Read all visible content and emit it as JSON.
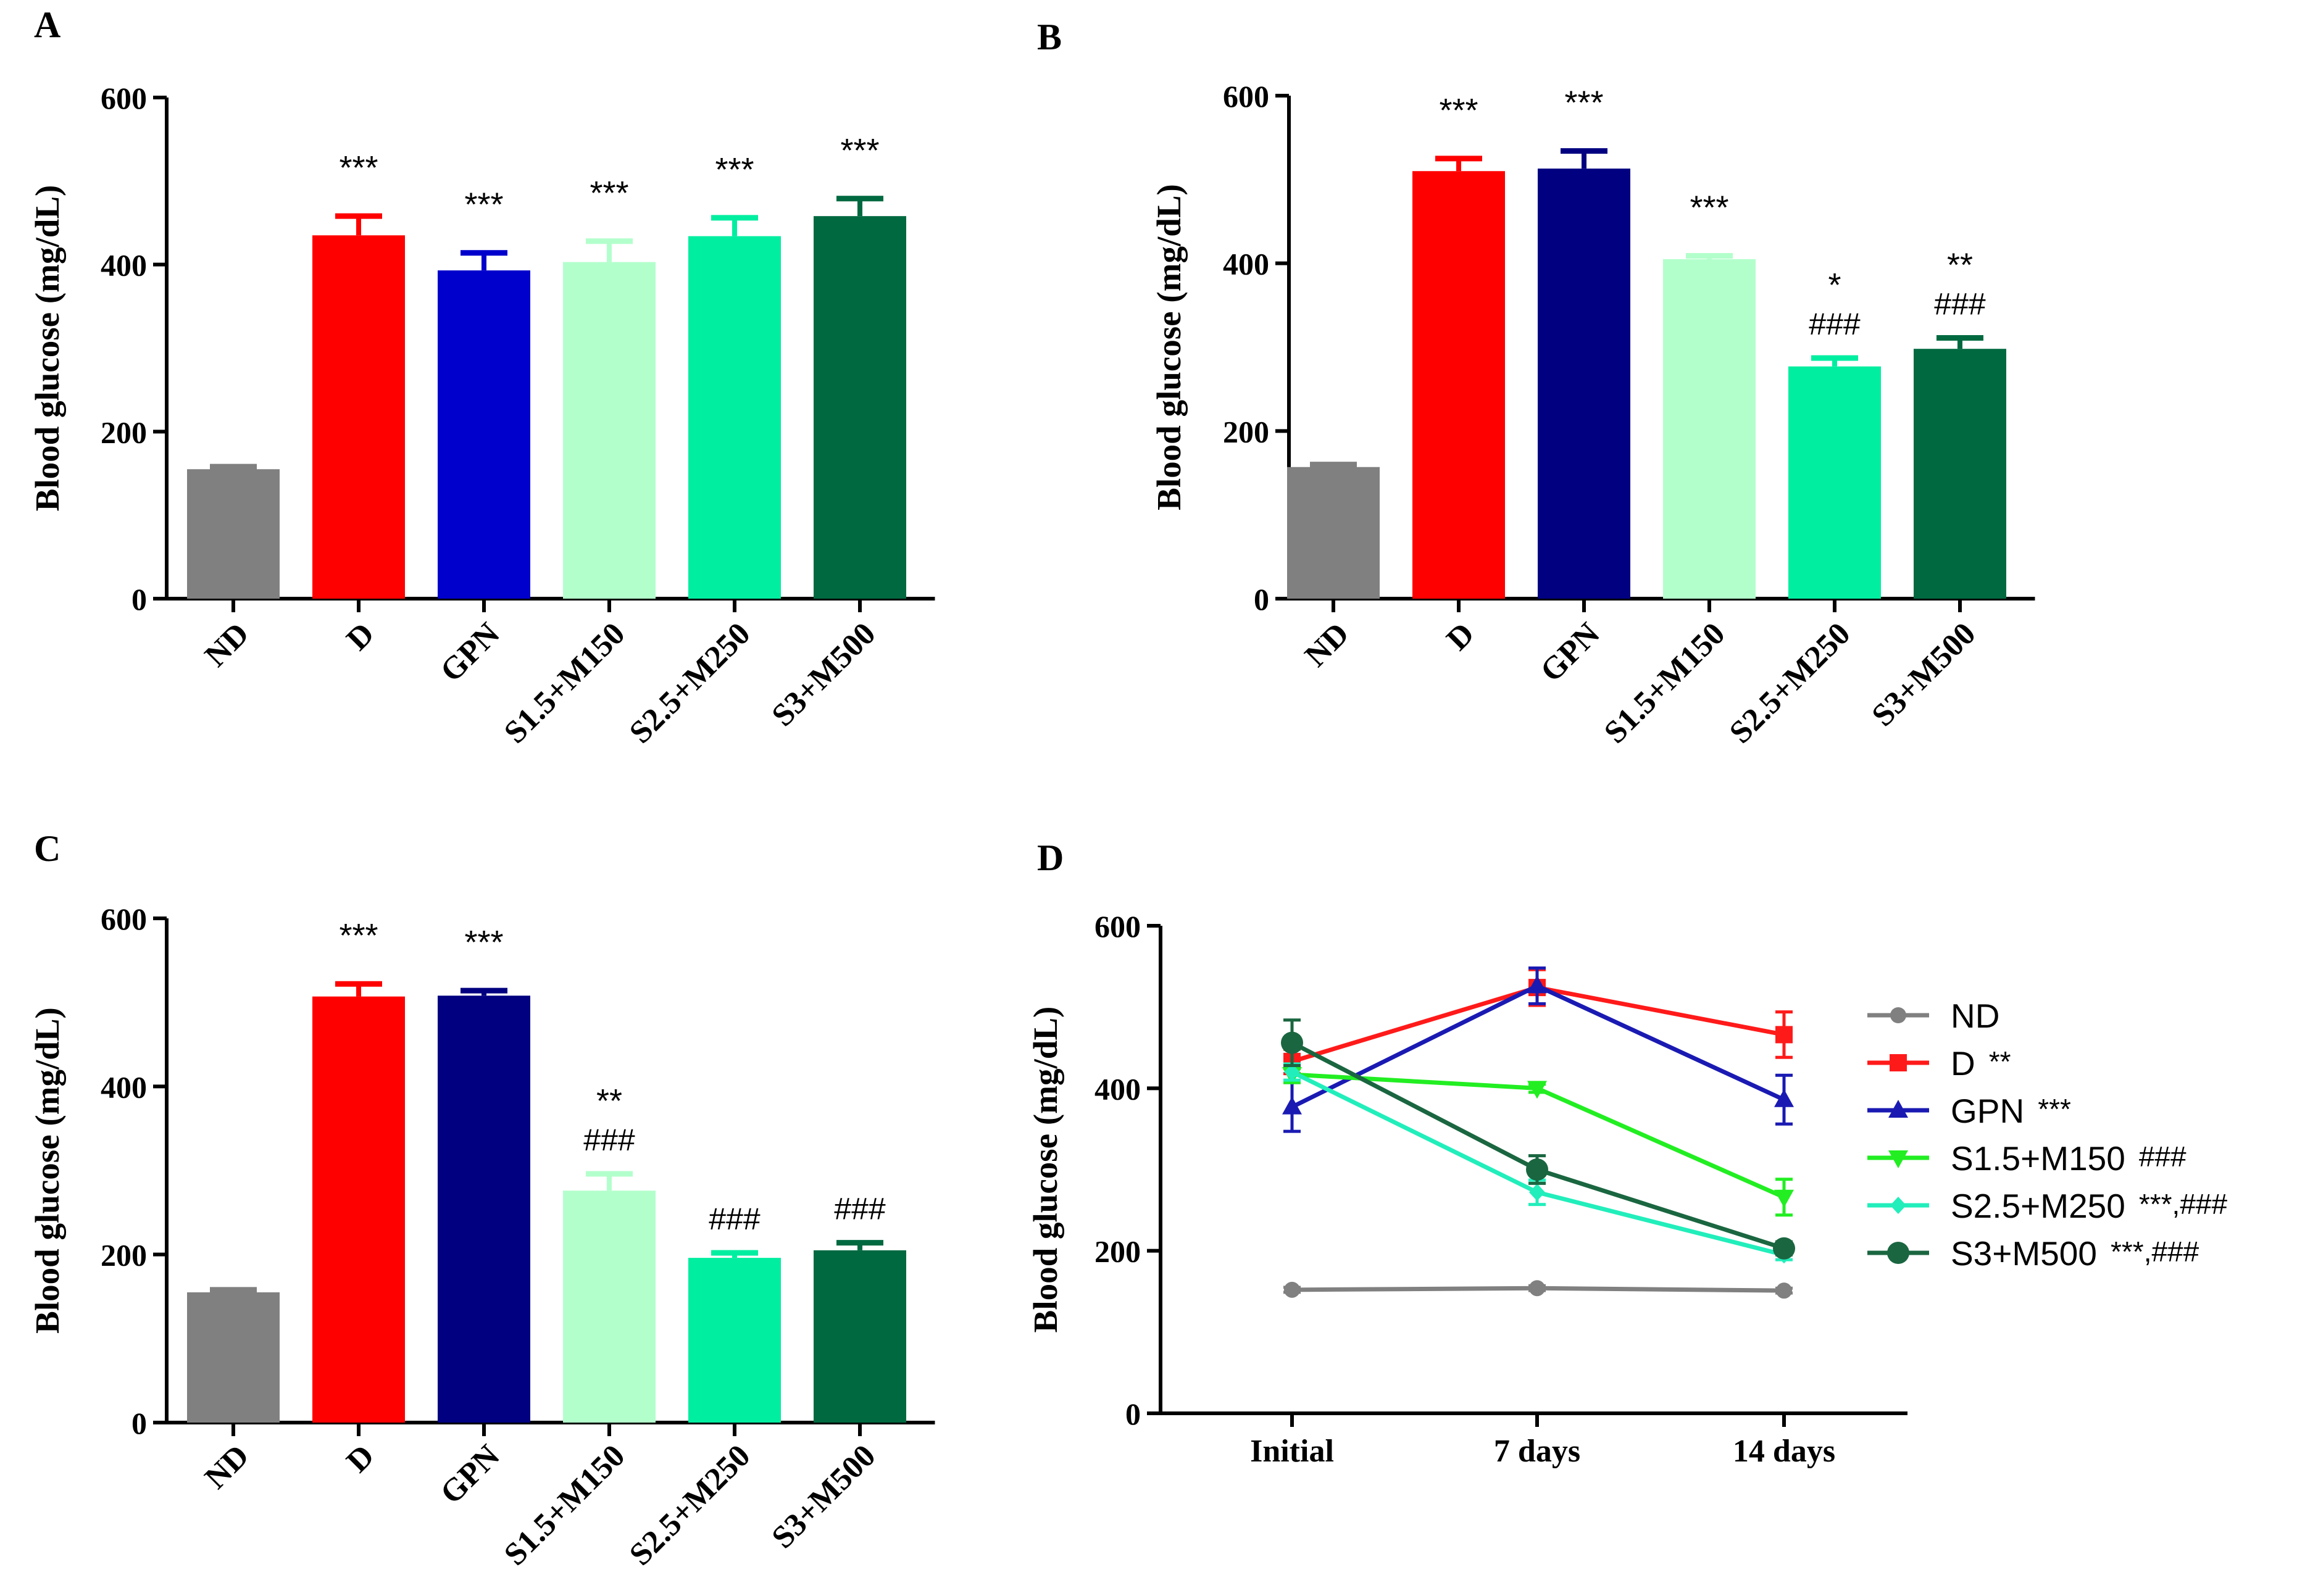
{
  "colors": {
    "ND": "#808080",
    "D": "#ff0000",
    "GPN_A": "#0000cc",
    "GPN": "#000080",
    "S15": "#b3ffcc",
    "S25": "#00eea0",
    "S3": "#006940",
    "D_line": "#ff1a1a",
    "GPN_line": "#1a1ab3",
    "S15_line": "#22ee22",
    "S25_line": "#22eebb",
    "S3_line": "#1a6640"
  },
  "chart_data": [
    {
      "panel": "A",
      "type": "bar",
      "ylabel": "Blood glucose (mg/dL)",
      "ylim": [
        0,
        600
      ],
      "yticks": [
        "0",
        "200",
        "400",
        "600"
      ],
      "categories": [
        "ND",
        "D",
        "GPN",
        "S1.5+M150",
        "S2.5+M250",
        "S3+M500"
      ],
      "values": [
        155,
        435,
        393,
        403,
        434,
        458
      ],
      "errors": [
        3,
        23,
        21,
        25,
        22,
        21
      ],
      "colorKeys": [
        "ND",
        "D",
        "GPN_A",
        "S15",
        "S25",
        "S3"
      ],
      "sig1": [
        "",
        "***",
        "***",
        "***",
        "***",
        "***"
      ],
      "sig2": [
        "",
        "",
        "",
        "",
        "",
        ""
      ]
    },
    {
      "panel": "B",
      "type": "bar",
      "ylabel": "Blood glucose (mg/dL)",
      "ylim": [
        0,
        600
      ],
      "yticks": [
        "0",
        "200",
        "400",
        "600"
      ],
      "categories": [
        "ND",
        "D",
        "GPN",
        "S1.5+M150",
        "S2.5+M250",
        "S3+M500"
      ],
      "values": [
        157,
        510,
        513,
        405,
        277,
        298
      ],
      "errors": [
        3,
        15,
        21,
        4,
        10,
        13
      ],
      "colorKeys": [
        "ND",
        "D",
        "GPN",
        "S15",
        "S25",
        "S3"
      ],
      "sig1": [
        "",
        "***",
        "***",
        "***",
        "*",
        "**"
      ],
      "sig2": [
        "",
        "",
        "",
        "",
        "###",
        "###"
      ]
    },
    {
      "panel": "C",
      "type": "bar",
      "ylabel": "Blood glucose (mg/dL)",
      "ylim": [
        0,
        600
      ],
      "yticks": [
        "0",
        "200",
        "400",
        "600"
      ],
      "categories": [
        "ND",
        "D",
        "GPN",
        "S1.5+M150",
        "S2.5+M250",
        "S3+M500"
      ],
      "values": [
        155,
        507,
        508,
        276,
        196,
        205
      ],
      "errors": [
        3,
        15,
        6,
        20,
        6,
        9
      ],
      "colorKeys": [
        "ND",
        "D",
        "GPN",
        "S15",
        "S25",
        "S3"
      ],
      "sig1": [
        "",
        "***",
        "***",
        "**",
        "",
        ""
      ],
      "sig2": [
        "",
        "",
        "",
        "###",
        "###",
        "###"
      ]
    },
    {
      "panel": "D",
      "type": "line",
      "ylabel": "Blood glucose (mg/dL)",
      "ylim": [
        0,
        600
      ],
      "yticks": [
        "0",
        "200",
        "400",
        "600"
      ],
      "x": [
        "Initial",
        "7 days",
        "14 days"
      ],
      "series": [
        {
          "name": "ND",
          "sig": "",
          "values": [
            152,
            154,
            151
          ],
          "errors": [
            3,
            3,
            3
          ],
          "marker": "circle",
          "colorKey": "ND"
        },
        {
          "name": "D",
          "sig": "**",
          "values": [
            433,
            524,
            466
          ],
          "errors": [
            15,
            22,
            28
          ],
          "marker": "square",
          "colorKey": "D_line"
        },
        {
          "name": "GPN",
          "sig": "***",
          "values": [
            377,
            526,
            386
          ],
          "errors": [
            30,
            22,
            30
          ],
          "marker": "triangle-up",
          "colorKey": "GPN_line"
        },
        {
          "name": "S1.5+M150",
          "sig": "###",
          "values": [
            417,
            400,
            266
          ],
          "errors": [
            10,
            5,
            22
          ],
          "marker": "triangle-down",
          "colorKey": "S15_line"
        },
        {
          "name": "S2.5+M250",
          "sig": "***,###",
          "values": [
            420,
            272,
            195
          ],
          "errors": [
            10,
            15,
            6
          ],
          "marker": "diamond",
          "colorKey": "S25_line"
        },
        {
          "name": "S3+M500",
          "sig": "***,###",
          "values": [
            456,
            300,
            203
          ],
          "errors": [
            28,
            17,
            8
          ],
          "marker": "circle-large",
          "colorKey": "S3_line"
        }
      ]
    }
  ]
}
